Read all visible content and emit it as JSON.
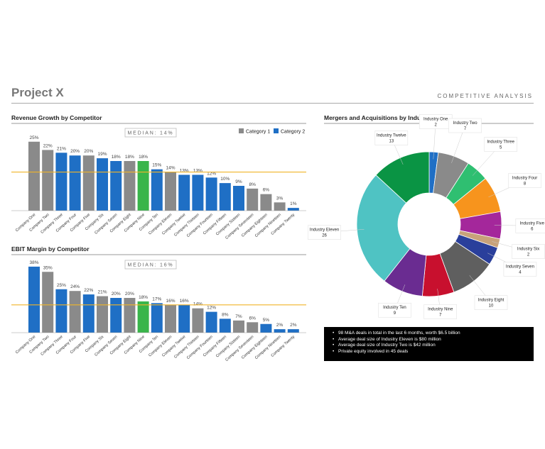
{
  "header": {
    "title": "Project X",
    "subtitle": "COMPETITIVE ANALYSIS"
  },
  "colors": {
    "category1": "#8a8a8a",
    "category2": "#1f6fc5",
    "highlight": "#39b54a",
    "median_line": "#f0b429"
  },
  "chart_data": [
    {
      "type": "bar",
      "title": "Revenue Growth by Competitor",
      "median_label": "MEDIAN: 14%",
      "median_value": 14,
      "legend": [
        "Category 1",
        "Category 2"
      ],
      "ylim": [
        0,
        27
      ],
      "categories": [
        "Company One",
        "Company Two",
        "Company Three",
        "Company Four",
        "Company Five",
        "Company Six",
        "Company Seven",
        "Company Eight",
        "Company Nine",
        "Company Ten",
        "Company Eleven",
        "Company Twelve",
        "Company Thirteen",
        "Company Fourteen",
        "Company Fifteen",
        "Company Sixteen",
        "Company Seventeen",
        "Company Eighteen",
        "Company Nineteen",
        "Company Twenty"
      ],
      "values": [
        25,
        22,
        21,
        20,
        20,
        19,
        18,
        18,
        18,
        15,
        14,
        13,
        13,
        12,
        10,
        9,
        8,
        6,
        3,
        1
      ],
      "labels": [
        "25%",
        "22%",
        "21%",
        "20%",
        "20%",
        "19%",
        "18%",
        "18%",
        "18%",
        "15%",
        "14%",
        "13%",
        "13%",
        "12%",
        "10%",
        "9%",
        "8%",
        "6%",
        "3%",
        "1%"
      ],
      "bar_categories": [
        1,
        1,
        2,
        2,
        1,
        2,
        2,
        1,
        0,
        2,
        1,
        2,
        2,
        2,
        2,
        2,
        1,
        1,
        1,
        2
      ]
    },
    {
      "type": "bar",
      "title": "EBIT Margin by Competitor",
      "median_label": "MEDIAN: 16%",
      "median_value": 16,
      "ylim": [
        0,
        40
      ],
      "categories": [
        "Company One",
        "Company Two",
        "Company Three",
        "Company Four",
        "Company Five",
        "Company Six",
        "Company Seven",
        "Company Eight",
        "Company Nine",
        "Company Ten",
        "Company Eleven",
        "Company Twelve",
        "Company Thirteen",
        "Company Fourteen",
        "Company Fifteen",
        "Company Sixteen",
        "Company Seventeen",
        "Company Eighteen",
        "Company Nineteen",
        "Company Twenty"
      ],
      "values": [
        38,
        35,
        25,
        24,
        22,
        21,
        20,
        20,
        18,
        17,
        16,
        16,
        14,
        12,
        8,
        7,
        6,
        5,
        2,
        2
      ],
      "labels": [
        "38%",
        "35%",
        "25%",
        "24%",
        "22%",
        "21%",
        "20%",
        "20%",
        "18%",
        "17%",
        "16%",
        "16%",
        "14%",
        "12%",
        "8%",
        "7%",
        "6%",
        "5%",
        "2%",
        "2%"
      ],
      "bar_categories": [
        2,
        1,
        2,
        1,
        2,
        1,
        2,
        1,
        0,
        2,
        1,
        2,
        1,
        2,
        2,
        1,
        1,
        2,
        2,
        2
      ]
    },
    {
      "type": "pie",
      "title": "Mergers and Acquisitions by Industry",
      "slices": [
        {
          "name": "Industry One",
          "value": 2,
          "color": "#1f6fc5"
        },
        {
          "name": "Industry Two",
          "value": 7,
          "color": "#8a8a8a"
        },
        {
          "name": "Industry Three",
          "value": 5,
          "color": "#2fbf71"
        },
        {
          "name": "Industry Four",
          "value": 8,
          "color": "#f7941d"
        },
        {
          "name": "Industry Five",
          "value": 6,
          "color": "#a4279b"
        },
        {
          "name": "Industry Six",
          "value": 2,
          "color": "#c8a27a"
        },
        {
          "name": "Industry Seven",
          "value": 4,
          "color": "#2a3f9b"
        },
        {
          "name": "Industry Eight",
          "value": 10,
          "color": "#5f5f5f"
        },
        {
          "name": "Industry Nine",
          "value": 7,
          "color": "#c8102e"
        },
        {
          "name": "Industry Ten",
          "value": 9,
          "color": "#6a2c91"
        },
        {
          "name": "Industry Eleven",
          "value": 26,
          "color": "#4fc3c3"
        },
        {
          "name": "Industry Twelve",
          "value": 13,
          "color": "#0a9444"
        }
      ]
    }
  ],
  "notes": [
    "98 M&A deals in total in the last 6 months, worth $6.5 billion",
    "Average deal size of Industry Eleven is $80 million",
    "Average deal size of Industry Two is $42 million",
    "Private equity involved in 45 deals"
  ]
}
